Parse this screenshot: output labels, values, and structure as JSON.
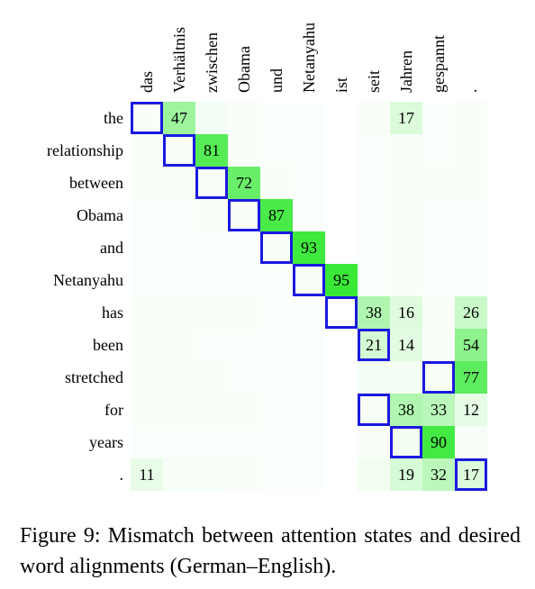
{
  "chart_data": {
    "type": "heatmap",
    "columns": [
      "das",
      "Verhältnis",
      "zwischen",
      "Obama",
      "und",
      "Netanyahu",
      "ist",
      "seit",
      "Jahren",
      "gespannt",
      "."
    ],
    "rows": [
      "the",
      "relationship",
      "between",
      "Obama",
      "and",
      "Netanyahu",
      "has",
      "been",
      "stretched",
      "for",
      "years",
      "."
    ],
    "values": [
      [
        3,
        47,
        5,
        3,
        2,
        2,
        0,
        3,
        17,
        2,
        3
      ],
      [
        3,
        3,
        81,
        3,
        2,
        2,
        0,
        2,
        3,
        2,
        3
      ],
      [
        3,
        3,
        3,
        72,
        3,
        2,
        0,
        2,
        3,
        3,
        3
      ],
      [
        2,
        2,
        3,
        3,
        87,
        2,
        0,
        2,
        3,
        2,
        2
      ],
      [
        2,
        2,
        2,
        2,
        3,
        93,
        0,
        2,
        3,
        2,
        2
      ],
      [
        2,
        2,
        2,
        2,
        2,
        3,
        95,
        2,
        3,
        2,
        2
      ],
      [
        3,
        3,
        3,
        3,
        2,
        2,
        0,
        38,
        16,
        3,
        26
      ],
      [
        3,
        3,
        2,
        2,
        2,
        2,
        0,
        21,
        14,
        3,
        54
      ],
      [
        3,
        4,
        3,
        2,
        2,
        2,
        0,
        5,
        5,
        3,
        77
      ],
      [
        3,
        3,
        3,
        3,
        2,
        2,
        0,
        4,
        38,
        33,
        12
      ],
      [
        2,
        2,
        2,
        2,
        2,
        2,
        0,
        3,
        6,
        90,
        4
      ],
      [
        11,
        4,
        4,
        3,
        2,
        2,
        0,
        6,
        19,
        32,
        17
      ]
    ],
    "label_threshold": 10,
    "alignment_boxes": [
      [
        0,
        0
      ],
      [
        1,
        1
      ],
      [
        2,
        2
      ],
      [
        3,
        3
      ],
      [
        4,
        4
      ],
      [
        5,
        5
      ],
      [
        6,
        6
      ],
      [
        7,
        7
      ],
      [
        8,
        9
      ],
      [
        9,
        7
      ],
      [
        10,
        8
      ],
      [
        11,
        10
      ]
    ],
    "box_color": "#1a1adf",
    "cell_color_max": "#2ee82e"
  },
  "caption": {
    "label": "Figure 9:",
    "text": "Mismatch between attention states and desired word alignments (German–English)."
  }
}
